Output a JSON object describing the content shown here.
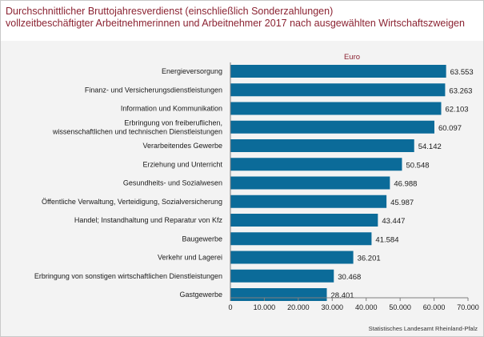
{
  "title": {
    "line1": "Durchschnittlicher Bruttojahresverdienst (einschließlich Sonderzahlungen)",
    "line2": "vollzeitbeschäftigter Arbeitnehmerinnen und Arbeitnehmer 2017 nach ausgewählten Wirtschaftszweigen"
  },
  "source": "Statistisches Landesamt Rheinland-Pfalz",
  "colors": {
    "bar": "#0b6b99",
    "title": "#8b2332",
    "panel": "#f3f3f3"
  },
  "chart_data": {
    "type": "bar",
    "orientation": "horizontal",
    "unit_label": "Euro",
    "categories": [
      [
        "Energieversorgung"
      ],
      [
        "Finanz- und Versicherungsdienstleistungen"
      ],
      [
        "Information und Kommunikation"
      ],
      [
        "Erbringung von freiberuflichen,",
        "wissenschaftlichen und technischen Dienstleistungen"
      ],
      [
        "Verarbeitendes Gewerbe"
      ],
      [
        "Erziehung und Unterricht"
      ],
      [
        "Gesundheits- und Sozialwesen"
      ],
      [
        "Öffentliche Verwaltung, Verteidigung, Sozialversicherung"
      ],
      [
        "Handel; Instandhaltung und Reparatur von Kfz"
      ],
      [
        "Baugewerbe"
      ],
      [
        "Verkehr und Lagerei"
      ],
      [
        "Erbringung von sonstigen wirtschaftlichen Dienstleistungen"
      ],
      [
        "Gastgewerbe"
      ]
    ],
    "values": [
      63553,
      63263,
      62103,
      60097,
      54142,
      50548,
      46988,
      45987,
      43447,
      41584,
      36201,
      30468,
      28401
    ],
    "value_labels": [
      "63.553",
      "63.263",
      "62.103",
      "60.097",
      "54.142",
      "50.548",
      "46.988",
      "45.987",
      "43.447",
      "41.584",
      "36.201",
      "30.468",
      "28.401"
    ],
    "xlim": [
      0,
      70000
    ],
    "xticks": [
      0,
      10000,
      20000,
      30000,
      40000,
      50000,
      60000,
      70000
    ],
    "xtick_labels": [
      "0",
      "10.000",
      "20.000",
      "30.000",
      "40.000",
      "50.000",
      "60.000",
      "70.000"
    ],
    "grid": false
  }
}
